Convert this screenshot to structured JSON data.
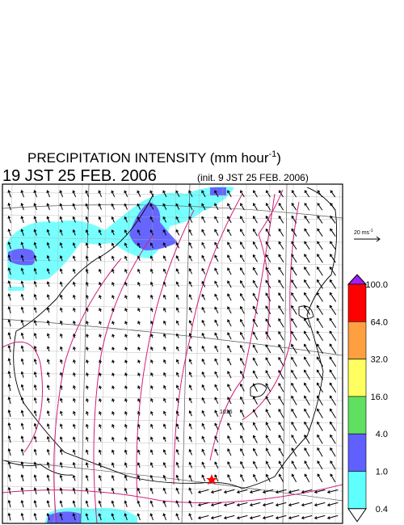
{
  "header": {
    "title": "PRECIPITATION INTENSITY (mm hour",
    "title_exponent": "-1",
    "title_close": ")",
    "valid_time": "19 JST 25 FEB. 2006",
    "init_time": "(init. 9 JST 25 FEB. 2006)"
  },
  "wind_scale": {
    "label": "20 ms",
    "exponent": "-1"
  },
  "contour_label": "1016",
  "colorbar": {
    "labels": [
      "100.0",
      "64.0",
      "32.0",
      "16.0",
      "4.0",
      "1.0",
      "0.4"
    ],
    "colors": [
      "#a020f0",
      "#ff0000",
      "#ffa040",
      "#ffff60",
      "#60e060",
      "#6060ff",
      "#60ffff",
      "#ffffff"
    ]
  }
}
